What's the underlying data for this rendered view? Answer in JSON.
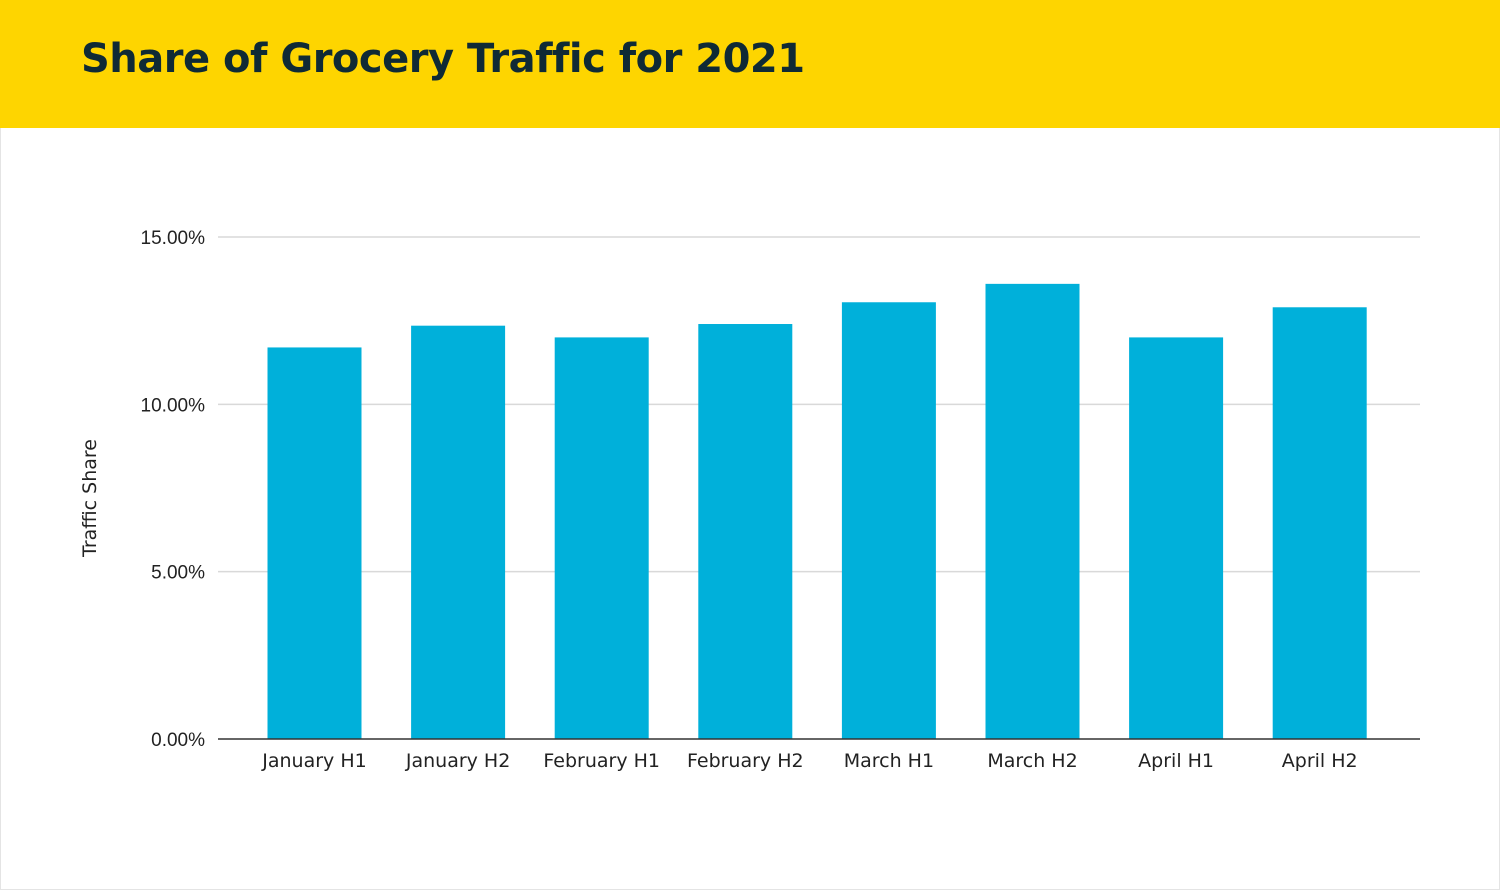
{
  "header": {
    "title": "Share of Grocery Traffic for 2021",
    "background": "#FED500"
  },
  "chart_data": {
    "type": "bar",
    "title": "Share of Grocery Traffic for 2021",
    "xlabel": "",
    "ylabel": "Traffic Share",
    "categories": [
      "January H1",
      "January H2",
      "February H1",
      "February H2",
      "March H1",
      "March H2",
      "April H1",
      "April H2"
    ],
    "values": [
      11.7,
      12.35,
      12.0,
      12.4,
      13.05,
      13.6,
      12.0,
      12.9
    ],
    "value_unit": "%",
    "ylim": [
      0,
      15
    ],
    "yticks": [
      0,
      5,
      10,
      15
    ],
    "ytick_labels": [
      "0.00%",
      "5.00%",
      "10.00%",
      "15.00%"
    ],
    "grid": true,
    "legend": "none",
    "bar_color": "#00B0DA"
  }
}
